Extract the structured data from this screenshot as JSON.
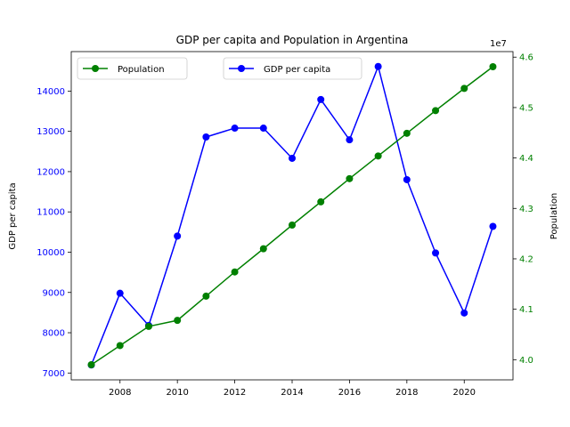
{
  "chart_data": {
    "type": "line",
    "title": "GDP per capita and Population in Argentina",
    "x": [
      2007,
      2008,
      2009,
      2010,
      2011,
      2012,
      2013,
      2014,
      2015,
      2016,
      2017,
      2018,
      2019,
      2020,
      2021
    ],
    "xlim": [
      2006.3,
      2021.7
    ],
    "xticks": [
      2008,
      2010,
      2012,
      2014,
      2016,
      2018,
      2020
    ],
    "series": [
      {
        "name": "GDP per capita",
        "axis": "left",
        "color": "#0000ff",
        "marker": "circle",
        "values": [
          7200,
          8980,
          8180,
          10400,
          12860,
          13080,
          13080,
          12330,
          13790,
          12790,
          14610,
          11800,
          9980,
          8490,
          10640
        ]
      },
      {
        "name": "Population",
        "axis": "right",
        "color": "#008000",
        "marker": "circle",
        "values": [
          39900000,
          40280000,
          40660000,
          40780000,
          41260000,
          41740000,
          42200000,
          42670000,
          43130000,
          43590000,
          44040000,
          44490000,
          44940000,
          45380000,
          45810000
        ]
      }
    ],
    "y_left": {
      "label": "GDP per capita",
      "color": "#0000ff",
      "lim": [
        6830,
        14980
      ],
      "ticks": [
        7000,
        8000,
        9000,
        10000,
        11000,
        12000,
        13000,
        14000
      ]
    },
    "y_right": {
      "label": "Population",
      "color": "#008000",
      "lim": [
        39600000,
        46110000
      ],
      "ticks": [
        40000000,
        41000000,
        42000000,
        43000000,
        44000000,
        45000000,
        46000000
      ],
      "tick_labels": [
        "4.0",
        "4.1",
        "4.2",
        "4.3",
        "4.4",
        "4.5",
        "4.6"
      ],
      "offset_text": "1e7"
    },
    "legends": [
      {
        "series": "Population",
        "placement": "upper-left"
      },
      {
        "series": "GDP per capita",
        "placement": "upper-center"
      }
    ],
    "grid": false
  }
}
